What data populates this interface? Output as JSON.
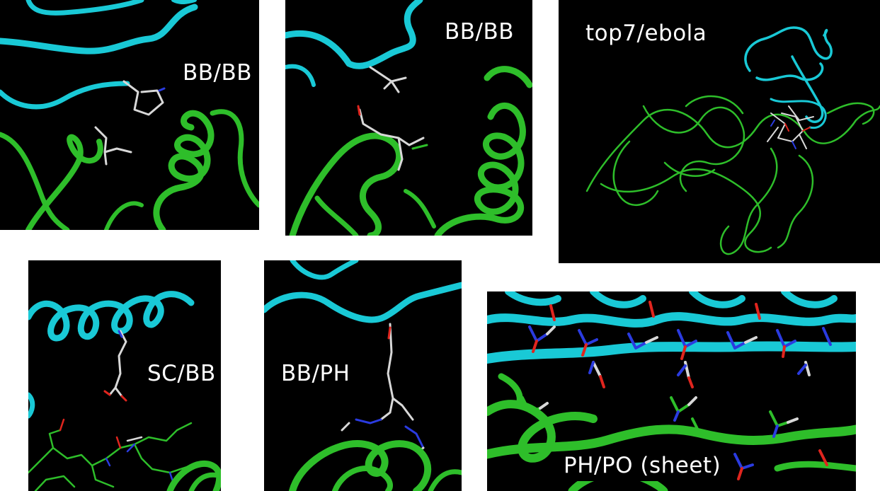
{
  "colors": {
    "panel_background": "#000000",
    "cyan_ribbon": "#19C9D6",
    "green_ribbon": "#2EBE2A",
    "stick_white": "#D8D8D8",
    "stick_blue": "#2A3BE0",
    "stick_red": "#E0251E",
    "label_text": "#FFFFFF"
  },
  "panels": [
    {
      "label": "BB/BB"
    },
    {
      "label": "BB/BB"
    },
    {
      "label": "top7/ebola"
    },
    {
      "label": "SC/BB"
    },
    {
      "label": "BB/PH"
    },
    {
      "label": "PH/PO (sheet)"
    }
  ]
}
